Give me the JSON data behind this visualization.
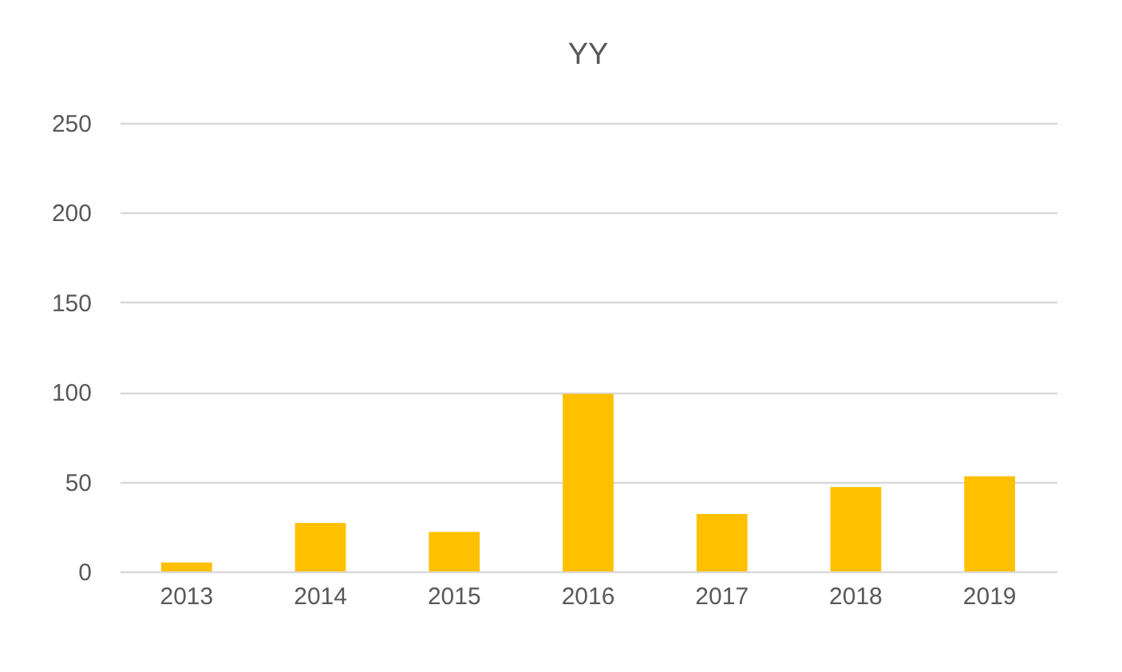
{
  "chart_data": {
    "type": "bar",
    "title": "YY",
    "categories": [
      "2013",
      "2014",
      "2015",
      "2016",
      "2017",
      "2018",
      "2019"
    ],
    "values": [
      5,
      27,
      22,
      99,
      32,
      47,
      53
    ],
    "color": "#ffc000",
    "ylim": [
      0,
      250
    ],
    "yticks": [
      0,
      50,
      100,
      150,
      200,
      250
    ],
    "grid": "y"
  }
}
